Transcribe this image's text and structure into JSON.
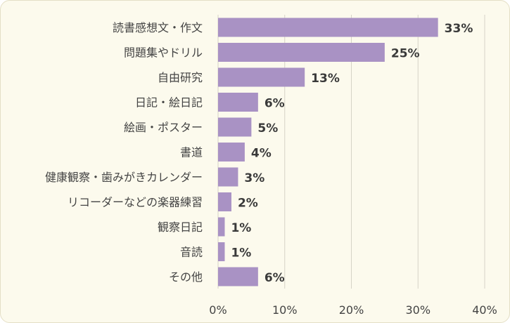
{
  "chart_data": {
    "type": "bar",
    "orientation": "horizontal",
    "categories": [
      "読書感想文・作文",
      "問題集やドリル",
      "自由研究",
      "日記・絵日記",
      "絵画・ポスター",
      "書道",
      "健康観察・歯みがきカレンダー",
      "リコーダーなどの楽器練習",
      "観察日記",
      "音読",
      "その他"
    ],
    "values": [
      33,
      25,
      13,
      6,
      5,
      4,
      3,
      2,
      1,
      1,
      6
    ],
    "value_labels": [
      "33%",
      "25%",
      "13%",
      "6%",
      "5%",
      "4%",
      "3%",
      "2%",
      "1%",
      "1%",
      "6%"
    ],
    "xlim": [
      0,
      40
    ],
    "x_ticks": [
      0,
      10,
      20,
      30,
      40
    ],
    "x_tick_labels": [
      "0%",
      "10%",
      "20%",
      "30%",
      "40%"
    ],
    "grid": "vertical",
    "bar_color": "#a992c4",
    "background_color": "#fcfaed",
    "grid_color": "#d6d3c7"
  }
}
